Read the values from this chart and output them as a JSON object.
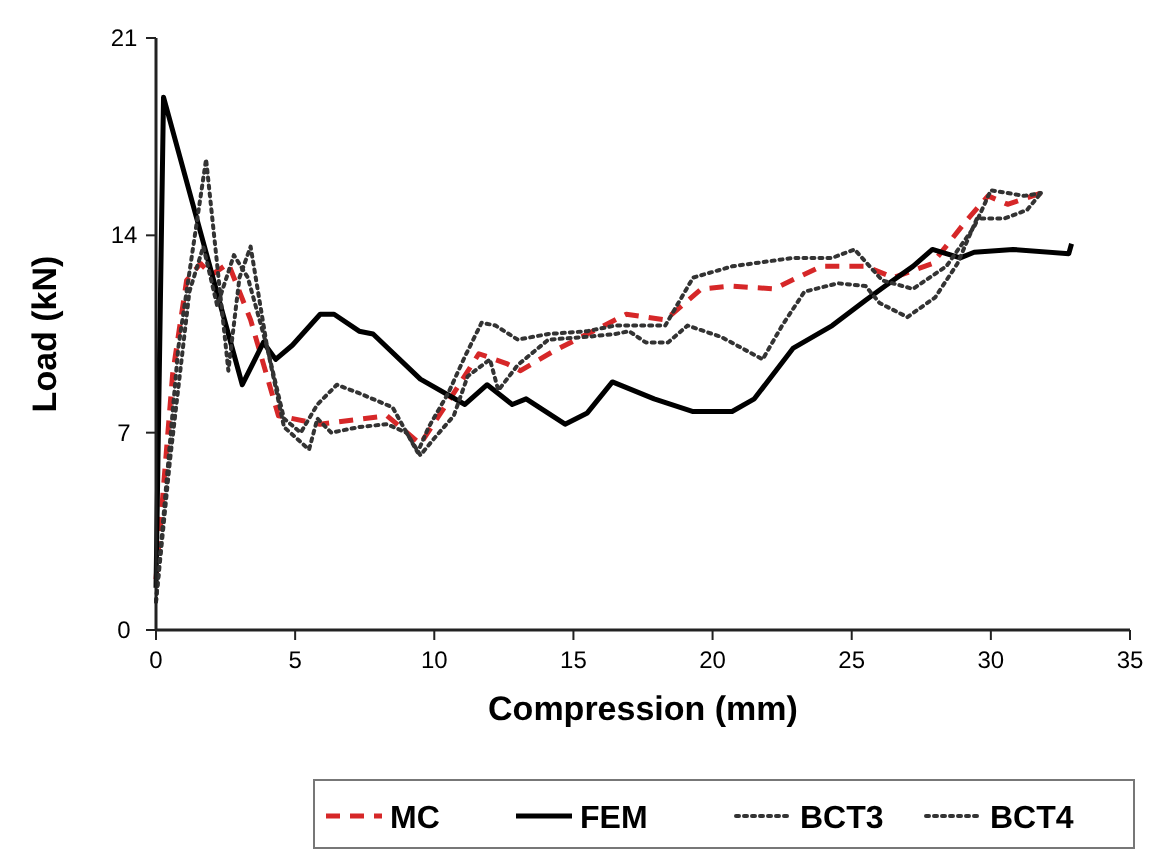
{
  "chart_data": {
    "type": "line",
    "xlabel": "Compression (mm)",
    "ylabel": "Load (kN)",
    "xlim": [
      0,
      35
    ],
    "ylim": [
      0,
      21
    ],
    "xticks": [
      0,
      5,
      10,
      15,
      20,
      25,
      30,
      35
    ],
    "yticks": [
      0,
      7,
      14,
      21
    ],
    "grid": false,
    "legend": "bottom",
    "marker": "none",
    "series": [
      {
        "name": "MC",
        "color": "#d62728",
        "line_style": "dashed",
        "x": [
          0,
          0.6,
          1.1,
          1.6,
          2.0,
          2.6,
          3.4,
          4.4,
          5.9,
          7.1,
          8.3,
          9.5,
          10.7,
          11.6,
          12.6,
          13.1,
          14.3,
          15.7,
          16.9,
          18.3,
          19.6,
          20.7,
          22.2,
          23.9,
          25.5,
          26.5,
          27.9,
          29.1,
          29.9,
          30.6,
          31.8
        ],
        "values": [
          1.8,
          9.1,
          12.4,
          13.0,
          12.6,
          13.0,
          11.0,
          7.6,
          7.3,
          7.45,
          7.6,
          6.6,
          8.4,
          9.8,
          9.45,
          9.2,
          9.9,
          10.6,
          11.2,
          11.0,
          12.1,
          12.2,
          12.1,
          12.9,
          12.9,
          12.5,
          13.0,
          14.5,
          15.4,
          15.1,
          15.5
        ]
      },
      {
        "name": "FEM",
        "color": "#000000",
        "line_style": "solid",
        "x": [
          0,
          0.27,
          3.1,
          3.86,
          4.3,
          4.9,
          5.9,
          6.4,
          7.3,
          7.8,
          9.5,
          11.1,
          11.9,
          12.8,
          13.3,
          14.7,
          15.5,
          16.4,
          17.9,
          19.3,
          20.7,
          21.5,
          22.9,
          24.3,
          25.5,
          26.2,
          27.2,
          27.9,
          28.9,
          29.4,
          30.8,
          32.8,
          32.9
        ],
        "values": [
          1.5,
          18.9,
          8.7,
          10.2,
          9.6,
          10.1,
          11.2,
          11.2,
          10.6,
          10.5,
          8.9,
          8.0,
          8.7,
          8.0,
          8.2,
          7.3,
          7.7,
          8.8,
          8.2,
          7.75,
          7.75,
          8.2,
          10.0,
          10.8,
          11.7,
          12.2,
          12.9,
          13.5,
          13.2,
          13.4,
          13.5,
          13.35,
          13.7
        ]
      },
      {
        "name": "BCT3",
        "color": "#333333",
        "line_style": "dotted",
        "x": [
          0,
          0.8,
          1.8,
          2.3,
          2.6,
          3.0,
          3.4,
          4.0,
          4.6,
          5.2,
          5.8,
          6.5,
          7.3,
          8.5,
          9.4,
          9.8,
          10.5,
          11.1,
          11.7,
          12.2,
          13.0,
          14.1,
          15.5,
          16.5,
          18.3,
          19.3,
          20.7,
          22.9,
          24.3,
          25.1,
          26.1,
          27.2,
          28.4,
          29.4,
          30.0,
          31.2,
          31.8
        ],
        "values": [
          1.0,
          10.0,
          16.7,
          12.0,
          9.2,
          12.5,
          13.6,
          10.0,
          7.5,
          7.0,
          8.0,
          8.7,
          8.4,
          7.9,
          6.3,
          7.2,
          8.4,
          9.7,
          10.9,
          10.8,
          10.3,
          10.5,
          10.6,
          10.8,
          10.8,
          12.5,
          12.9,
          13.2,
          13.2,
          13.5,
          12.4,
          12.1,
          12.9,
          14.3,
          15.6,
          15.4,
          15.5
        ]
      },
      {
        "name": "BCT4",
        "color": "#333333",
        "line_style": "dotted",
        "x": [
          0,
          0.5,
          1.2,
          1.7,
          2.2,
          2.8,
          3.3,
          4.0,
          4.6,
          5.5,
          5.8,
          6.3,
          7.3,
          8.3,
          9.0,
          9.5,
          10.0,
          10.7,
          11.2,
          12.0,
          12.3,
          13.0,
          14.1,
          15.5,
          16.5,
          17.0,
          17.6,
          18.4,
          19.1,
          20.3,
          21.8,
          22.5,
          23.3,
          24.5,
          25.5,
          26.0,
          27.0,
          28.0,
          28.8,
          29.5,
          30.5,
          31.3,
          31.8
        ],
        "values": [
          1.0,
          6.0,
          12.0,
          13.6,
          11.5,
          13.3,
          12.5,
          10.0,
          7.2,
          6.4,
          7.5,
          7.0,
          7.2,
          7.3,
          7.0,
          6.2,
          6.8,
          7.6,
          9.0,
          9.6,
          8.5,
          9.4,
          10.3,
          10.4,
          10.5,
          10.6,
          10.2,
          10.2,
          10.8,
          10.4,
          9.6,
          10.8,
          12.0,
          12.3,
          12.2,
          11.6,
          11.1,
          11.8,
          13.0,
          14.6,
          14.6,
          14.9,
          15.5
        ]
      }
    ]
  }
}
